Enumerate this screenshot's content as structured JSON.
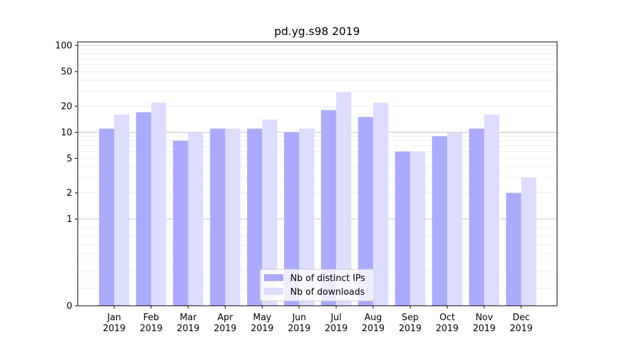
{
  "chart_data": {
    "type": "bar",
    "title": "pd.yg.s98 2019",
    "xlabel": "",
    "ylabel": "",
    "yscale": "symlog",
    "ylim": [
      0,
      110
    ],
    "yticks": [
      0,
      1,
      2,
      5,
      10,
      20,
      50,
      100
    ],
    "ytick_labels": [
      "0",
      "1",
      "2",
      "5",
      "10",
      "20",
      "50",
      "100"
    ],
    "grid": true,
    "legend_position": "bottom-center",
    "categories": [
      [
        "Jan",
        "2019"
      ],
      [
        "Feb",
        "2019"
      ],
      [
        "Mar",
        "2019"
      ],
      [
        "Apr",
        "2019"
      ],
      [
        "May",
        "2019"
      ],
      [
        "Jun",
        "2019"
      ],
      [
        "Jul",
        "2019"
      ],
      [
        "Aug",
        "2019"
      ],
      [
        "Sep",
        "2019"
      ],
      [
        "Oct",
        "2019"
      ],
      [
        "Nov",
        "2019"
      ],
      [
        "Dec",
        "2019"
      ]
    ],
    "series": [
      {
        "name": "Nb of distinct IPs",
        "color": "#aaaaff",
        "values": [
          11,
          17,
          8,
          11,
          11,
          10,
          18,
          15,
          6,
          9,
          11,
          2
        ]
      },
      {
        "name": "Nb of downloads",
        "color": "#ddddff",
        "values": [
          16,
          22,
          10,
          11,
          14,
          11,
          29,
          22,
          6,
          10,
          16,
          3
        ]
      }
    ]
  }
}
